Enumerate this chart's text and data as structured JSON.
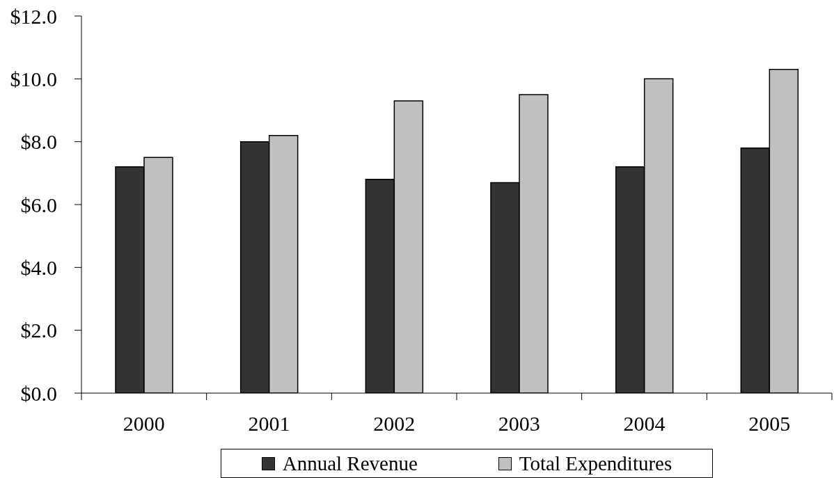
{
  "chart_data": {
    "type": "bar",
    "categories": [
      "2000",
      "2001",
      "2002",
      "2003",
      "2004",
      "2005"
    ],
    "series": [
      {
        "name": "Annual Revenue",
        "color": "#333333",
        "values": [
          7.2,
          8.0,
          6.8,
          6.7,
          7.2,
          7.8
        ]
      },
      {
        "name": "Total Expenditures",
        "color": "#c0c0c0",
        "values": [
          7.5,
          8.2,
          9.3,
          9.5,
          10.0,
          10.3
        ]
      }
    ],
    "ylim": [
      0,
      12
    ],
    "yticks": [
      {
        "value": 0,
        "label": "$0.0"
      },
      {
        "value": 2,
        "label": "$2.0"
      },
      {
        "value": 4,
        "label": "$4.0"
      },
      {
        "value": 6,
        "label": "$6.0"
      },
      {
        "value": 8,
        "label": "$8.0"
      },
      {
        "value": 10,
        "label": "$10.0"
      },
      {
        "value": 12,
        "label": "$12.0"
      }
    ],
    "legend": "bottom"
  }
}
